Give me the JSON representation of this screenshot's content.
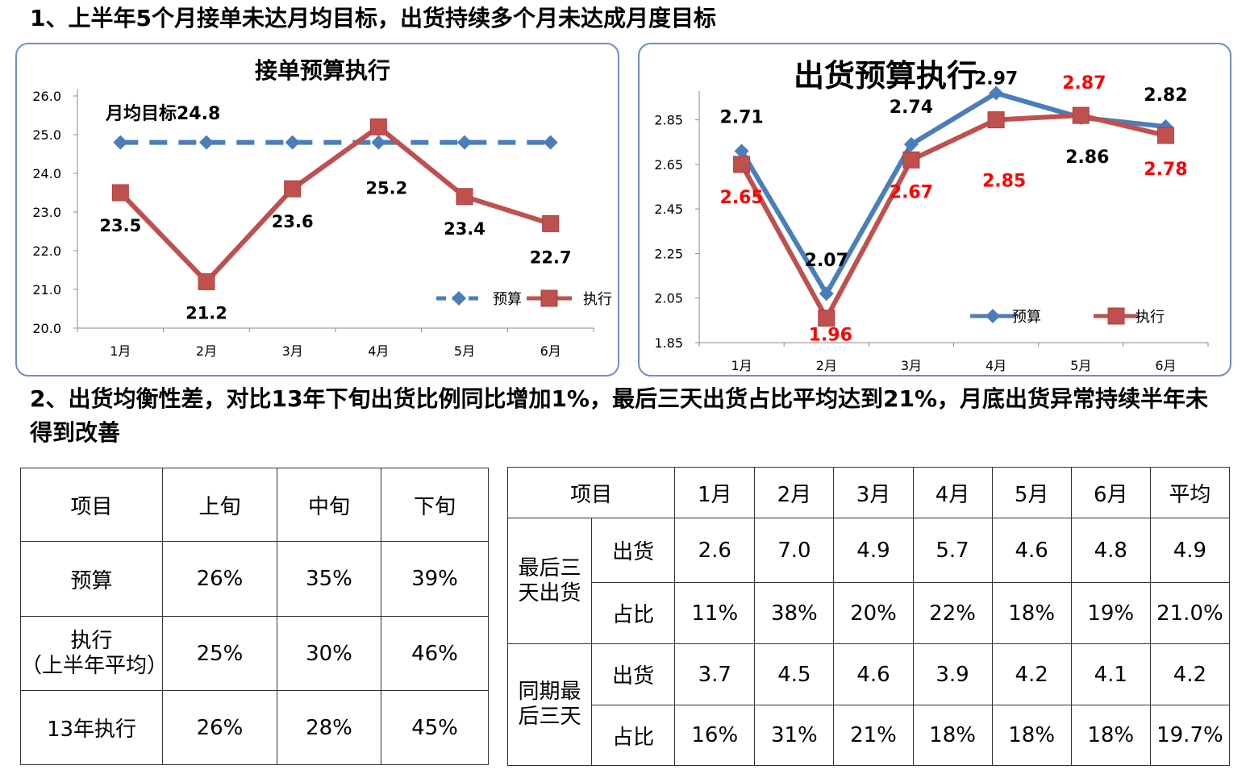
{
  "headings": {
    "h1": "1、上半年5个月接单未达月均目标，出货持续多个月未达成月度目标",
    "h2": "2、出货均衡性差，对比13年下旬出货比例同比增加1%，最后三天出货占比平均达到21%，月底出货异常持续半年未得到改善"
  },
  "chart_data": [
    {
      "type": "line",
      "title": "接单预算执行",
      "categories": [
        "1月",
        "2月",
        "3月",
        "4月",
        "5月",
        "6月"
      ],
      "ylim": [
        20.0,
        26.0
      ],
      "yticks": [
        "20.0",
        "21.0",
        "22.0",
        "23.0",
        "24.0",
        "25.0",
        "26.0"
      ],
      "annotation": "月均目标24.8",
      "legend_position": "bottom-right",
      "grid": false,
      "series": [
        {
          "name": "预算",
          "values": [
            24.8,
            24.8,
            24.8,
            24.8,
            24.8,
            24.8
          ],
          "color": "#4a7ebb",
          "style": "dashed",
          "marker": "diamond",
          "labels": [
            "",
            "",
            "",
            "",
            "",
            ""
          ]
        },
        {
          "name": "执行",
          "values": [
            23.5,
            21.2,
            23.6,
            25.2,
            23.4,
            22.7
          ],
          "color": "#c0504d",
          "style": "solid",
          "marker": "square",
          "labels": [
            "23.5",
            "21.2",
            "23.6",
            "25.2",
            "23.4",
            "22.7"
          ],
          "label_color": "#000000"
        }
      ]
    },
    {
      "type": "line",
      "title": "出货预算执行",
      "categories": [
        "1月",
        "2月",
        "3月",
        "4月",
        "5月",
        "6月"
      ],
      "ylim": [
        1.85,
        2.95
      ],
      "yticks": [
        "1.85",
        "2.05",
        "2.25",
        "2.45",
        "2.65",
        "2.85"
      ],
      "legend_position": "bottom-right",
      "grid": false,
      "series": [
        {
          "name": "预算",
          "values": [
            2.71,
            2.07,
            2.74,
            2.97,
            2.86,
            2.82
          ],
          "color": "#4a7ebb",
          "style": "solid",
          "marker": "diamond",
          "labels": [
            "2.71",
            "2.07",
            "2.74",
            "2.97",
            "2.86",
            "2.82"
          ],
          "label_color": "#000000"
        },
        {
          "name": "执行",
          "values": [
            2.65,
            1.96,
            2.67,
            2.85,
            2.87,
            2.78
          ],
          "color": "#c0504d",
          "style": "solid",
          "marker": "square",
          "labels": [
            "2.65",
            "1.96",
            "2.67",
            "2.85",
            "2.87",
            "2.78"
          ],
          "label_color": "#ff0000"
        }
      ]
    }
  ],
  "table1": {
    "header": [
      "项目",
      "上旬",
      "中旬",
      "下旬"
    ],
    "rows": [
      [
        "预算",
        "26%",
        "35%",
        "39%"
      ],
      [
        "执行\n（上半年平均）",
        "25%",
        "30%",
        "46%"
      ],
      [
        "13年执行",
        "26%",
        "28%",
        "45%"
      ]
    ]
  },
  "table2": {
    "header": [
      "项目",
      "1月",
      "2月",
      "3月",
      "4月",
      "5月",
      "6月",
      "平均"
    ],
    "groups": [
      {
        "label": "最后三\n天出货",
        "rows": [
          {
            "label": "出货",
            "values": [
              "2.6",
              "7.0",
              "4.9",
              "5.7",
              "4.6",
              "4.8",
              "4.9"
            ]
          },
          {
            "label": "占比",
            "values": [
              "11%",
              "38%",
              "20%",
              "22%",
              "18%",
              "19%",
              "21.0%"
            ]
          }
        ]
      },
      {
        "label": "同期最\n后三天",
        "rows": [
          {
            "label": "出货",
            "values": [
              "3.7",
              "4.5",
              "4.6",
              "3.9",
              "4.2",
              "4.1",
              "4.2"
            ]
          },
          {
            "label": "占比",
            "values": [
              "16%",
              "31%",
              "21%",
              "18%",
              "18%",
              "18%",
              "19.7%"
            ]
          }
        ]
      }
    ]
  }
}
